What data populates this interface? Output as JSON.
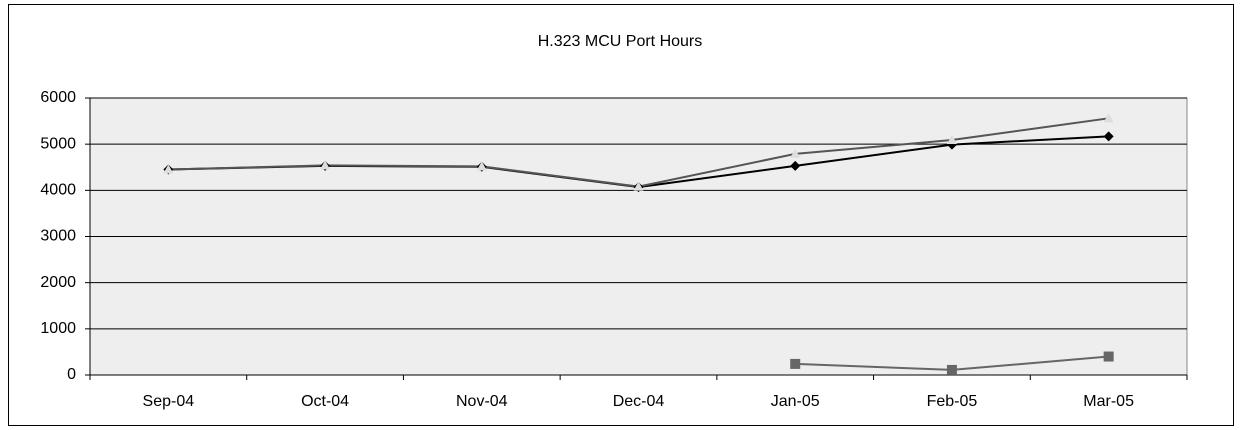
{
  "chart_data": {
    "type": "line",
    "title": "H.323 MCU Port Hours",
    "categories": [
      "Sep-04",
      "Oct-04",
      "Nov-04",
      "Dec-04",
      "Jan-05",
      "Feb-05",
      "Mar-05"
    ],
    "series": [
      {
        "color": "#000000",
        "marker": "diamond",
        "marker_color": "#000000",
        "values": [
          4450,
          4530,
          4510,
          4070,
          4530,
          4990,
          5170
        ]
      },
      {
        "color": "#555555",
        "marker": "triangle",
        "marker_color": "#dddddd",
        "values": [
          4450,
          4540,
          4520,
          4080,
          4790,
          5090,
          5560
        ]
      },
      {
        "color": "#666666",
        "marker": "square",
        "marker_color": "#666666",
        "values": [
          null,
          null,
          null,
          null,
          240,
          110,
          400
        ]
      }
    ],
    "ylim": [
      0,
      6000
    ],
    "yticks": [
      0,
      1000,
      2000,
      3000,
      4000,
      5000,
      6000
    ],
    "grid": true
  }
}
